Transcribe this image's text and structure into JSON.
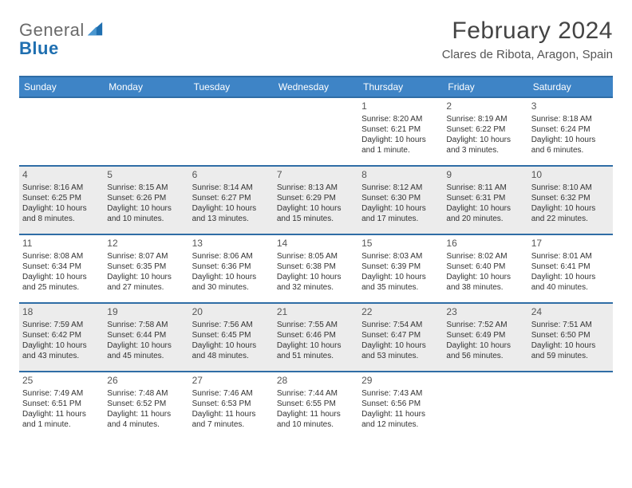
{
  "brand": {
    "word1": "General",
    "word2": "Blue"
  },
  "header": {
    "title": "February 2024",
    "location": "Clares de Ribota, Aragon, Spain"
  },
  "colors": {
    "header_bg": "#3e84c6",
    "header_border": "#2f6da6",
    "shaded_bg": "#ececec",
    "logo_gray": "#6a6a6a",
    "logo_blue": "#1f6fb0",
    "text_dark": "#333333"
  },
  "day_labels": [
    "Sunday",
    "Monday",
    "Tuesday",
    "Wednesday",
    "Thursday",
    "Friday",
    "Saturday"
  ],
  "weeks": [
    {
      "shaded": false,
      "cells": [
        {
          "empty": true
        },
        {
          "empty": true
        },
        {
          "empty": true
        },
        {
          "empty": true
        },
        {
          "num": "1",
          "sunrise": "8:20 AM",
          "sunset": "6:21 PM",
          "daylight": "10 hours and 1 minute."
        },
        {
          "num": "2",
          "sunrise": "8:19 AM",
          "sunset": "6:22 PM",
          "daylight": "10 hours and 3 minutes."
        },
        {
          "num": "3",
          "sunrise": "8:18 AM",
          "sunset": "6:24 PM",
          "daylight": "10 hours and 6 minutes."
        }
      ]
    },
    {
      "shaded": true,
      "cells": [
        {
          "num": "4",
          "sunrise": "8:16 AM",
          "sunset": "6:25 PM",
          "daylight": "10 hours and 8 minutes."
        },
        {
          "num": "5",
          "sunrise": "8:15 AM",
          "sunset": "6:26 PM",
          "daylight": "10 hours and 10 minutes."
        },
        {
          "num": "6",
          "sunrise": "8:14 AM",
          "sunset": "6:27 PM",
          "daylight": "10 hours and 13 minutes."
        },
        {
          "num": "7",
          "sunrise": "8:13 AM",
          "sunset": "6:29 PM",
          "daylight": "10 hours and 15 minutes."
        },
        {
          "num": "8",
          "sunrise": "8:12 AM",
          "sunset": "6:30 PM",
          "daylight": "10 hours and 17 minutes."
        },
        {
          "num": "9",
          "sunrise": "8:11 AM",
          "sunset": "6:31 PM",
          "daylight": "10 hours and 20 minutes."
        },
        {
          "num": "10",
          "sunrise": "8:10 AM",
          "sunset": "6:32 PM",
          "daylight": "10 hours and 22 minutes."
        }
      ]
    },
    {
      "shaded": false,
      "cells": [
        {
          "num": "11",
          "sunrise": "8:08 AM",
          "sunset": "6:34 PM",
          "daylight": "10 hours and 25 minutes."
        },
        {
          "num": "12",
          "sunrise": "8:07 AM",
          "sunset": "6:35 PM",
          "daylight": "10 hours and 27 minutes."
        },
        {
          "num": "13",
          "sunrise": "8:06 AM",
          "sunset": "6:36 PM",
          "daylight": "10 hours and 30 minutes."
        },
        {
          "num": "14",
          "sunrise": "8:05 AM",
          "sunset": "6:38 PM",
          "daylight": "10 hours and 32 minutes."
        },
        {
          "num": "15",
          "sunrise": "8:03 AM",
          "sunset": "6:39 PM",
          "daylight": "10 hours and 35 minutes."
        },
        {
          "num": "16",
          "sunrise": "8:02 AM",
          "sunset": "6:40 PM",
          "daylight": "10 hours and 38 minutes."
        },
        {
          "num": "17",
          "sunrise": "8:01 AM",
          "sunset": "6:41 PM",
          "daylight": "10 hours and 40 minutes."
        }
      ]
    },
    {
      "shaded": true,
      "cells": [
        {
          "num": "18",
          "sunrise": "7:59 AM",
          "sunset": "6:42 PM",
          "daylight": "10 hours and 43 minutes."
        },
        {
          "num": "19",
          "sunrise": "7:58 AM",
          "sunset": "6:44 PM",
          "daylight": "10 hours and 45 minutes."
        },
        {
          "num": "20",
          "sunrise": "7:56 AM",
          "sunset": "6:45 PM",
          "daylight": "10 hours and 48 minutes."
        },
        {
          "num": "21",
          "sunrise": "7:55 AM",
          "sunset": "6:46 PM",
          "daylight": "10 hours and 51 minutes."
        },
        {
          "num": "22",
          "sunrise": "7:54 AM",
          "sunset": "6:47 PM",
          "daylight": "10 hours and 53 minutes."
        },
        {
          "num": "23",
          "sunrise": "7:52 AM",
          "sunset": "6:49 PM",
          "daylight": "10 hours and 56 minutes."
        },
        {
          "num": "24",
          "sunrise": "7:51 AM",
          "sunset": "6:50 PM",
          "daylight": "10 hours and 59 minutes."
        }
      ]
    },
    {
      "shaded": false,
      "cells": [
        {
          "num": "25",
          "sunrise": "7:49 AM",
          "sunset": "6:51 PM",
          "daylight": "11 hours and 1 minute."
        },
        {
          "num": "26",
          "sunrise": "7:48 AM",
          "sunset": "6:52 PM",
          "daylight": "11 hours and 4 minutes."
        },
        {
          "num": "27",
          "sunrise": "7:46 AM",
          "sunset": "6:53 PM",
          "daylight": "11 hours and 7 minutes."
        },
        {
          "num": "28",
          "sunrise": "7:44 AM",
          "sunset": "6:55 PM",
          "daylight": "11 hours and 10 minutes."
        },
        {
          "num": "29",
          "sunrise": "7:43 AM",
          "sunset": "6:56 PM",
          "daylight": "11 hours and 12 minutes."
        },
        {
          "empty": true
        },
        {
          "empty": true
        }
      ]
    }
  ],
  "labels": {
    "sunrise": "Sunrise:",
    "sunset": "Sunset:",
    "daylight": "Daylight:"
  }
}
